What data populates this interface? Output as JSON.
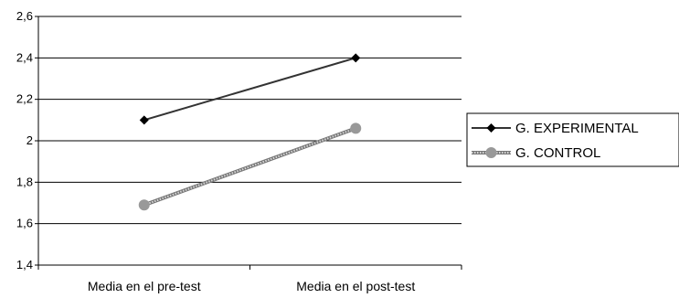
{
  "chart_data": {
    "type": "line",
    "title": "",
    "xlabel": "",
    "ylabel": "",
    "categories": [
      "Media en el pre-test",
      "Media en el post-test"
    ],
    "ylim": [
      1.4,
      2.6
    ],
    "y_ticks": [
      "1,4",
      "1,6",
      "1,8",
      "2",
      "2,2",
      "2,4",
      "2,6"
    ],
    "y_tick_values": [
      1.4,
      1.6,
      1.8,
      2.0,
      2.2,
      2.4,
      2.6
    ],
    "grid": true,
    "legend_position": "right",
    "series": [
      {
        "name": "G. EXPERIMENTAL",
        "values": [
          2.1,
          2.4
        ],
        "color": "#333333",
        "marker": "diamond"
      },
      {
        "name": "G. CONTROL",
        "values": [
          1.69,
          2.06
        ],
        "color": "#999999",
        "marker": "circle"
      }
    ]
  }
}
